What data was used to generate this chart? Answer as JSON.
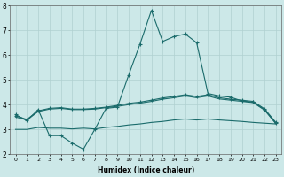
{
  "xlabel": "Humidex (Indice chaleur)",
  "xlim": [
    -0.5,
    23.5
  ],
  "ylim": [
    2,
    8
  ],
  "yticks": [
    2,
    3,
    4,
    5,
    6,
    7,
    8
  ],
  "xticks": [
    0,
    1,
    2,
    3,
    4,
    5,
    6,
    7,
    8,
    9,
    10,
    11,
    12,
    13,
    14,
    15,
    16,
    17,
    18,
    19,
    20,
    21,
    22,
    23
  ],
  "bg_color": "#cce8e8",
  "grid_color": "#b0d0d0",
  "line_color": "#1a6b6b",
  "line_width": 0.8,
  "marker": "+",
  "marker_size": 3,
  "series0_y": [
    3.6,
    3.35,
    3.8,
    2.75,
    2.75,
    2.45,
    2.2,
    3.0,
    3.85,
    3.9,
    5.2,
    6.45,
    7.8,
    6.55,
    6.75,
    6.85,
    6.5,
    4.45,
    4.35,
    4.3,
    4.15,
    4.1,
    3.8,
    3.25
  ],
  "series1_y": [
    3.55,
    3.4,
    3.75,
    3.85,
    3.88,
    3.82,
    3.82,
    3.85,
    3.9,
    3.97,
    4.05,
    4.1,
    4.18,
    4.27,
    4.33,
    4.4,
    4.33,
    4.4,
    4.28,
    4.22,
    4.18,
    4.13,
    3.83,
    3.28
  ],
  "series2_y": [
    3.5,
    3.38,
    3.72,
    3.82,
    3.85,
    3.8,
    3.8,
    3.82,
    3.88,
    3.93,
    4.0,
    4.06,
    4.13,
    4.22,
    4.28,
    4.35,
    4.28,
    4.35,
    4.23,
    4.18,
    4.13,
    4.08,
    3.78,
    3.23
  ],
  "series3_y": [
    3.0,
    3.0,
    3.08,
    3.05,
    3.05,
    3.02,
    3.05,
    3.02,
    3.08,
    3.12,
    3.18,
    3.22,
    3.28,
    3.32,
    3.38,
    3.42,
    3.38,
    3.42,
    3.38,
    3.35,
    3.32,
    3.28,
    3.25,
    3.22
  ]
}
